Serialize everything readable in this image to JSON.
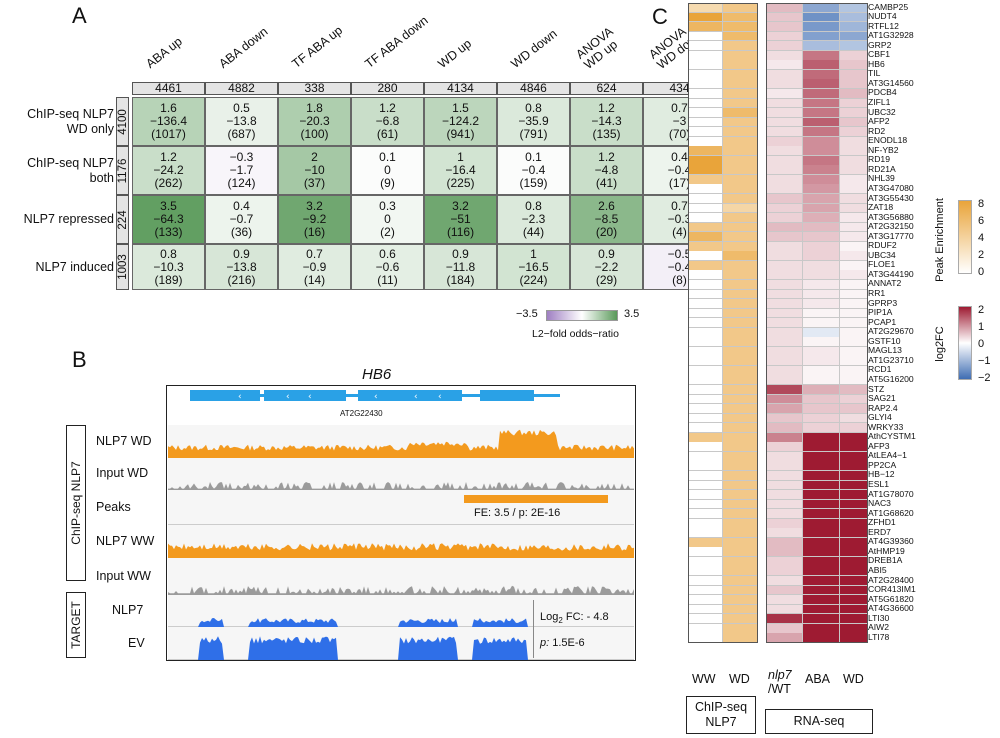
{
  "panelA": {
    "label": "A",
    "columns": [
      {
        "name": "ABA up",
        "n": "4461"
      },
      {
        "name": "ABA down",
        "n": "4882"
      },
      {
        "name": "TF ABA up",
        "n": "338"
      },
      {
        "name": "TF ABA down",
        "n": "280"
      },
      {
        "name": "WD up",
        "n": "4134"
      },
      {
        "name": "WD down",
        "n": "4846"
      },
      {
        "name": "ANOVA\nWD up",
        "n": "624"
      },
      {
        "name": "ANOVA\nWD down",
        "n": "434"
      }
    ],
    "rows": [
      {
        "name": "ChIP-seq NLP7\nWD only",
        "n": "4100",
        "cells": [
          [
            "1.6",
            "−136.4",
            "(1017)"
          ],
          [
            "0.5",
            "−13.8",
            "(687)"
          ],
          [
            "1.8",
            "−20.3",
            "(100)"
          ],
          [
            "1.2",
            "−6.8",
            "(61)"
          ],
          [
            "1.5",
            "−124.2",
            "(941)"
          ],
          [
            "0.8",
            "−35.9",
            "(791)"
          ],
          [
            "1.2",
            "−14.3",
            "(135)"
          ],
          [
            "0.7",
            "−3",
            "(70)"
          ]
        ],
        "vals": [
          1.6,
          0.5,
          1.8,
          1.2,
          1.5,
          0.8,
          1.2,
          0.7
        ]
      },
      {
        "name": "ChIP-seq NLP7\nboth",
        "n": "1176",
        "cells": [
          [
            "1.2",
            "−24.2",
            "(262)"
          ],
          [
            "−0.3",
            "−1.7",
            "(124)"
          ],
          [
            "2",
            "−10",
            "(37)"
          ],
          [
            "0.1",
            "0",
            "(9)"
          ],
          [
            "1",
            "−16.4",
            "(225)"
          ],
          [
            "0.1",
            "−0.4",
            "(159)"
          ],
          [
            "1.2",
            "−4.8",
            "(41)"
          ],
          [
            "0.4",
            "−0.4",
            "(17)"
          ]
        ],
        "vals": [
          1.2,
          -0.3,
          2,
          0.1,
          1,
          0.1,
          1.2,
          0.4
        ]
      },
      {
        "name": "NLP7 repressed",
        "n": "224",
        "cells": [
          [
            "3.5",
            "−64.3",
            "(133)"
          ],
          [
            "0.4",
            "−0.7",
            "(36)"
          ],
          [
            "3.2",
            "−9.2",
            "(16)"
          ],
          [
            "0.3",
            "0",
            "(2)"
          ],
          [
            "3.2",
            "−51",
            "(116)"
          ],
          [
            "0.8",
            "−2.3",
            "(44)"
          ],
          [
            "2.6",
            "−8.5",
            "(20)"
          ],
          [
            "0.7",
            "−0.3",
            "(4)"
          ]
        ],
        "vals": [
          3.5,
          0.4,
          3.2,
          0.3,
          3.2,
          0.8,
          2.6,
          0.7
        ]
      },
      {
        "name": "NLP7 induced",
        "n": "1003",
        "cells": [
          [
            "0.8",
            "−10.3",
            "(189)"
          ],
          [
            "0.9",
            "−13.8",
            "(216)"
          ],
          [
            "0.7",
            "−0.9",
            "(14)"
          ],
          [
            "0.6",
            "−0.6",
            "(11)"
          ],
          [
            "0.9",
            "−11.8",
            "(184)"
          ],
          [
            "1",
            "−16.5",
            "(224)"
          ],
          [
            "0.9",
            "−2.2",
            "(29)"
          ],
          [
            "−0.5",
            "−0.4",
            "(8)"
          ]
        ],
        "vals": [
          0.8,
          0.9,
          0.7,
          0.6,
          0.9,
          1,
          0.9,
          -0.5
        ]
      }
    ],
    "legend": {
      "min": "−3.5",
      "max": "3.5",
      "title": "L2−fold odds−ratio"
    }
  },
  "panelB": {
    "label": "B",
    "gene": "HB6",
    "locus": "AT2G22430",
    "group1": "ChIP-seq NLP7",
    "group2": "TARGET",
    "tracks": [
      "NLP7 WD",
      "Input WD",
      "Peaks",
      "NLP7 WW",
      "Input  WW",
      "NLP7",
      "EV"
    ],
    "peak_note": "FE: 3.5 / p: 2E-16",
    "fc_note_prefix": "Log",
    "fc_note_sub": "2",
    "fc_note_suffix": " FC: - 4.8",
    "p_note_prefix": "p:",
    "p_note_value": " 1.5E-6"
  },
  "panelC": {
    "label": "C",
    "genes": [
      "CAMBP25",
      "NUDT4",
      "RTFL12",
      "AT1G32928",
      "GRP2",
      "CBF1",
      "HB6",
      "TIL",
      "AT3G14560",
      "PDCB4",
      "ZIFL1",
      "UBC32",
      "AFP2",
      "RD2",
      "ENODL18",
      "NF-YB2",
      "RD19",
      "RD21A",
      "NHL39",
      "AT3G47080",
      "AT3G55430",
      "ZAT18",
      "AT3G56880",
      "AT2G32150",
      "AT3G17770",
      "RDUF2",
      "UBC34",
      "FLOE1",
      "AT3G44190",
      "ANNAT2",
      "RR1",
      "GPRP3",
      "PIP1A",
      "PCAP1",
      "AT2G29670",
      "GSTF10",
      "MAGL13",
      "AT1G23710",
      "RCD1",
      "AT5G16200",
      "STZ",
      "SAG21",
      "RAP2.4",
      "GLYI4",
      "WRKY33",
      "AthCYSTM1",
      "AFP3",
      "AtLEA4−1",
      "PP2CA",
      "HB−12",
      "ESL1",
      "AT1G78070",
      "NAC3",
      "AT1G68620",
      "ZFHD1",
      "ERD7",
      "AT4G39360",
      "AtHMP19",
      "DREB1A",
      "ABI5",
      "AT2G28400",
      "COR413IM1",
      "AT5G61820",
      "AT4G36600",
      "LTI30",
      "AIW2",
      "LTI78"
    ],
    "peak": {
      "WW": [
        2,
        6,
        4,
        0,
        0,
        0,
        0,
        0,
        0,
        0,
        0,
        0,
        0,
        0,
        0,
        4,
        5,
        5,
        3,
        0,
        0,
        0,
        0,
        3,
        4,
        3,
        0,
        3,
        0,
        0,
        0,
        0,
        0,
        0,
        0,
        0,
        0,
        0,
        0,
        0,
        0,
        0,
        0,
        0,
        0,
        3,
        0,
        0,
        0,
        0,
        0,
        0,
        0,
        0,
        0,
        0,
        3,
        0,
        0,
        0,
        0,
        0,
        0,
        0,
        0,
        0,
        0
      ],
      "WD": [
        4,
        5,
        5,
        5,
        4,
        4,
        4,
        4,
        4,
        4,
        4,
        5,
        4,
        4,
        4,
        4,
        4,
        4,
        4,
        4,
        4,
        3,
        4,
        4,
        4,
        4,
        5,
        4,
        4,
        4,
        4,
        4,
        4,
        4,
        4,
        4,
        4,
        4,
        4,
        4,
        4,
        4,
        4,
        4,
        4,
        4,
        4,
        4,
        4,
        4,
        4,
        4,
        4,
        4,
        4,
        4,
        4,
        4,
        4,
        4,
        4,
        4,
        4,
        4,
        4,
        4,
        4
      ]
    },
    "fc": {
      "nlp7": [
        0.6,
        0.5,
        0.5,
        0.4,
        0.4,
        0.3,
        0.2,
        0.3,
        0.3,
        0.2,
        0.3,
        0.3,
        0.3,
        0.3,
        0.4,
        0.3,
        0.3,
        0.3,
        0.3,
        0.3,
        0.5,
        0.4,
        0.4,
        0.6,
        0.5,
        0.3,
        0.3,
        0.3,
        0.3,
        0.3,
        0.3,
        0.3,
        0.3,
        0.3,
        0.3,
        0.3,
        0.3,
        0.3,
        0.3,
        0.3,
        1.6,
        1.0,
        0.8,
        0.5,
        0.6,
        1.1,
        0.4,
        0.3,
        0.3,
        0.3,
        0.3,
        0.3,
        0.3,
        0.3,
        0.4,
        0.3,
        0.6,
        0.6,
        0.4,
        0.4,
        0.3,
        0.5,
        0.3,
        0.3,
        1.8,
        0.5,
        0.8
      ],
      "aba": [
        -1.2,
        -1.5,
        -1.4,
        -1.3,
        -0.9,
        1.2,
        1.4,
        1.3,
        1.4,
        1.3,
        1.2,
        1.2,
        1.4,
        1.2,
        1.0,
        1.0,
        1.2,
        1.1,
        1.0,
        0.9,
        0.8,
        0.8,
        0.7,
        0.6,
        0.5,
        0.4,
        0.4,
        0.3,
        0.3,
        0.2,
        0.2,
        0.2,
        0.1,
        0.1,
        -0.3,
        0.1,
        0.2,
        0.2,
        0.1,
        0.1,
        0.7,
        0.5,
        0.5,
        0.4,
        0.4,
        2,
        2,
        2,
        2,
        2,
        2,
        2,
        2,
        2,
        2,
        2,
        2,
        2,
        2,
        2,
        2,
        2,
        2,
        2,
        2,
        2,
        2
      ],
      "wd": [
        -0.8,
        -0.9,
        -1.0,
        -1.2,
        -0.8,
        0.4,
        0.5,
        0.5,
        0.5,
        0.6,
        0.4,
        0.4,
        0.5,
        0.4,
        0.3,
        0.3,
        0.3,
        0.3,
        0.2,
        0.2,
        0.3,
        0.3,
        0.2,
        0.2,
        0.2,
        0.1,
        0.2,
        0.1,
        0.2,
        0.1,
        0.1,
        0.1,
        0.1,
        0.1,
        0.1,
        0.1,
        0.1,
        0.1,
        0.1,
        0.1,
        0.6,
        0.4,
        0.5,
        0.3,
        0.4,
        2,
        2,
        2,
        2,
        2,
        2,
        2,
        2,
        2,
        2,
        2,
        2,
        2,
        2,
        2,
        2,
        2,
        2,
        2,
        2,
        2,
        2
      ]
    },
    "col_labels": {
      "ww": "WW",
      "wd": "WD",
      "nlp7": "nlp7",
      "wt": "/WT",
      "aba": "ABA",
      "wd2": "WD"
    },
    "group_chip": "ChIP-seq\nNLP7",
    "group_rna": "RNA-seq",
    "legend_peak": {
      "title": "Peak Enrichment",
      "ticks": [
        "8",
        "6",
        "4",
        "2",
        "0"
      ]
    },
    "legend_fc": {
      "title": "log2FC",
      "ticks": [
        "2",
        "1",
        "0",
        "−1",
        "−2"
      ]
    },
    "colors": {
      "orange": "#e9a43a",
      "red": "#9e1b32",
      "blue": "#3f6db3",
      "green": "#5a9a5a",
      "purple": "#9f7fc2"
    }
  }
}
